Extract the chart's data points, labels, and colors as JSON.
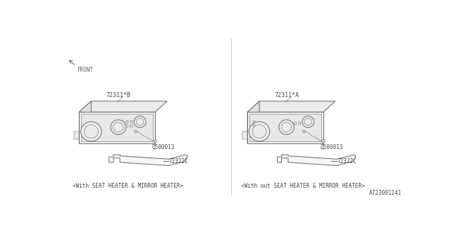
{
  "bg_color": "#ffffff",
  "line_color": "#666666",
  "text_color": "#444444",
  "title_bottom_right": "A723001241",
  "diagram1": {
    "part_number": "72311*B",
    "screw_number": "Q500013",
    "bracket_number": "72322C",
    "caption": "<With SEAT HEATER & MIRROR HEATER>"
  },
  "diagram2": {
    "part_number": "72311*A",
    "screw_number": "Q500013",
    "bracket_number": "72322C",
    "caption": "<With out SEAT HEATER & MIRROR HEATER>"
  },
  "front_label": "FRONT",
  "figsize": [
    6.4,
    3.2
  ],
  "dpi": 100
}
